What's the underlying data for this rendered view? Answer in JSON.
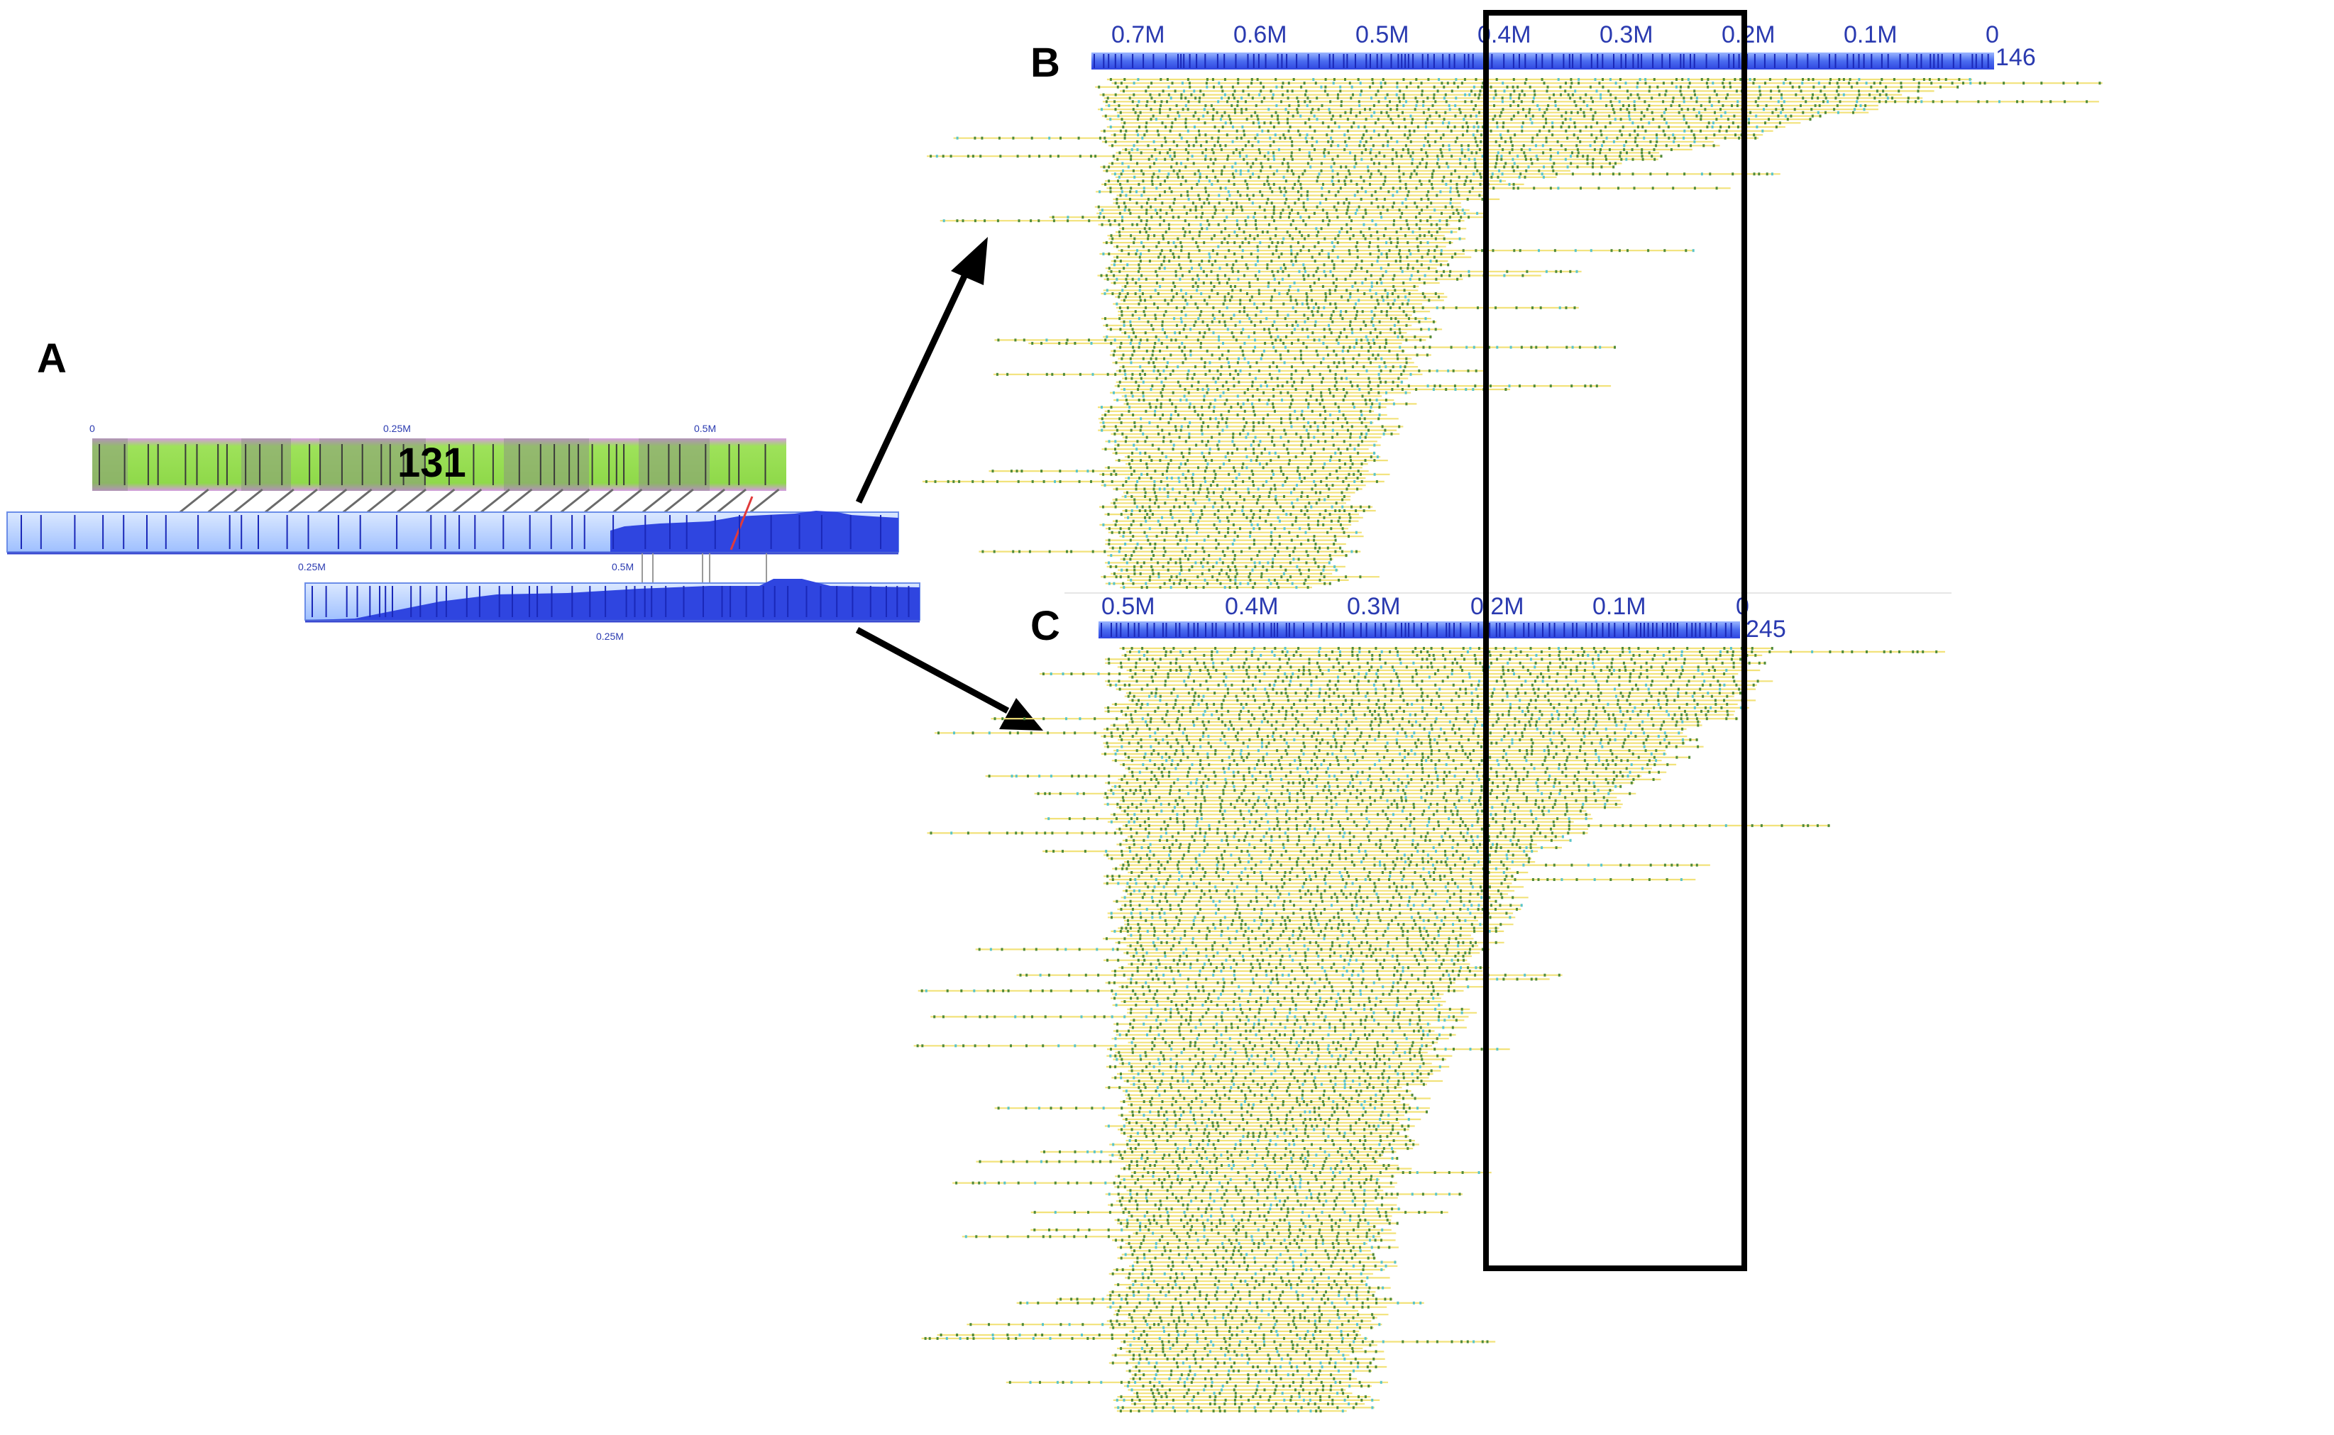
{
  "panels": {
    "A": {
      "label": "A",
      "contig_id": "131",
      "contig_ticks": [
        "0",
        "0.25M",
        "0.5M"
      ],
      "map1_ticks": [
        "0.25M",
        "0.5M"
      ],
      "map2_ticks": [
        "0.25M"
      ]
    },
    "B": {
      "label": "B",
      "ticks": [
        "0.7M",
        "0.6M",
        "0.5M",
        "0.4M",
        "0.3M",
        "0.2M",
        "0.1M",
        "0"
      ],
      "map_id": "146",
      "max_mb": 0.75
    },
    "C": {
      "label": "C",
      "ticks": [
        "0.5M",
        "0.4M",
        "0.3M",
        "0.2M",
        "0.1M",
        "0"
      ],
      "map_id": "245",
      "max_mb": 0.52
    }
  },
  "colors": {
    "ruler_blue": "#4a6cf0",
    "ruler_light": "#bcd4ff",
    "coverage_blue": "#2f45e0",
    "molecule_yellow": "#f2e27a",
    "label_green": "#4f8a3a",
    "label_cyan": "#59c4c9",
    "contig_green": "#8fd94a",
    "contig_purple": "#d49be0",
    "highlight_box": "#000000",
    "axis_text": "#2a3ab0"
  }
}
